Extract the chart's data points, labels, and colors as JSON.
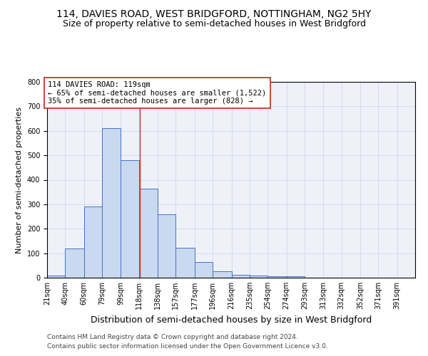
{
  "title1": "114, DAVIES ROAD, WEST BRIDGFORD, NOTTINGHAM, NG2 5HY",
  "title2": "Size of property relative to semi-detached houses in West Bridgford",
  "xlabel": "Distribution of semi-detached houses by size in West Bridgford",
  "ylabel": "Number of semi-detached properties",
  "footnote1": "Contains HM Land Registry data © Crown copyright and database right 2024.",
  "footnote2": "Contains public sector information licensed under the Open Government Licence v3.0.",
  "bar_edges": [
    21,
    40,
    60,
    79,
    99,
    118,
    138,
    157,
    177,
    196,
    216,
    235,
    254,
    274,
    293,
    313,
    332,
    352,
    371,
    391,
    410
  ],
  "bar_heights": [
    8,
    119,
    292,
    611,
    480,
    365,
    259,
    122,
    65,
    25,
    12,
    8,
    7,
    6,
    0,
    0,
    0,
    0,
    0,
    0
  ],
  "bar_color": "#c9d9f0",
  "bar_edge_color": "#4472c4",
  "vline_x": 119,
  "vline_color": "#c0392b",
  "ylim": [
    0,
    800
  ],
  "yticks": [
    0,
    100,
    200,
    300,
    400,
    500,
    600,
    700,
    800
  ],
  "annotation_text": "114 DAVIES ROAD: 119sqm\n← 65% of semi-detached houses are smaller (1,522)\n35% of semi-detached houses are larger (828) →",
  "annotation_box_color": "#ffffff",
  "annotation_box_edge": "#c0392b",
  "grid_color": "#d0d8e8",
  "bg_color": "#eef2f8",
  "title1_fontsize": 10,
  "title2_fontsize": 9,
  "xlabel_fontsize": 9,
  "ylabel_fontsize": 8,
  "tick_fontsize": 7,
  "annotation_fontsize": 7.5,
  "footnote_fontsize": 6.5
}
